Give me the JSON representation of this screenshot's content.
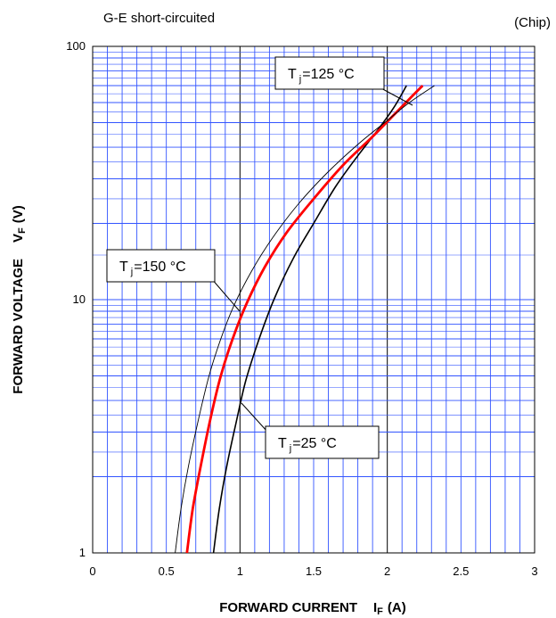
{
  "chart_data": {
    "type": "line",
    "title": "G-E short-circuited",
    "subtitle": "(Chip)",
    "xlabel": "FORWARD CURRENT",
    "xlabel_symbol": "I",
    "xlabel_sub": "F",
    "xlabel_unit": "(A)",
    "ylabel": "FORWARD VOLTAGE",
    "ylabel_symbol": "V",
    "ylabel_sub": "F",
    "ylabel_unit": "(V)",
    "xlim": [
      0,
      3
    ],
    "ylim": [
      1,
      100
    ],
    "yscale": "log",
    "grid": true,
    "x_ticks": [
      "0",
      "0.5",
      "1",
      "1.5",
      "2",
      "2.5",
      "3"
    ],
    "y_ticks": [
      "1",
      "10",
      "100"
    ],
    "series": [
      {
        "name": "Tj=25 °C",
        "label_prefix": "T",
        "label_sub": "j",
        "label_suffix": "=25 °C",
        "color": "#000000",
        "points": [
          [
            0.82,
            1.0
          ],
          [
            0.86,
            1.5
          ],
          [
            0.91,
            2.2
          ],
          [
            0.97,
            3.2
          ],
          [
            1.04,
            4.8
          ],
          [
            1.13,
            7.0
          ],
          [
            1.23,
            10.0
          ],
          [
            1.36,
            14.5
          ],
          [
            1.5,
            20.0
          ],
          [
            1.65,
            28.0
          ],
          [
            1.8,
            37.0
          ],
          [
            1.95,
            48.0
          ],
          [
            2.05,
            58.0
          ],
          [
            2.13,
            70.0
          ]
        ]
      },
      {
        "name": "Tj=125 °C",
        "label_prefix": "T",
        "label_sub": "j",
        "label_suffix": "=125 °C",
        "color": "#ff0000",
        "points": [
          [
            0.64,
            1.0
          ],
          [
            0.68,
            1.5
          ],
          [
            0.74,
            2.3
          ],
          [
            0.8,
            3.4
          ],
          [
            0.87,
            5.0
          ],
          [
            0.95,
            7.0
          ],
          [
            1.05,
            9.8
          ],
          [
            1.17,
            13.5
          ],
          [
            1.32,
            18.5
          ],
          [
            1.5,
            25.0
          ],
          [
            1.7,
            34.0
          ],
          [
            1.9,
            44.0
          ],
          [
            2.05,
            54.0
          ],
          [
            2.15,
            62.0
          ],
          [
            2.24,
            70.0
          ]
        ]
      },
      {
        "name": "Tj=150 °C",
        "label_prefix": "T",
        "label_sub": "j",
        "label_suffix": "=150 °C",
        "color": "#000000",
        "points": [
          [
            0.56,
            1.0
          ],
          [
            0.6,
            1.5
          ],
          [
            0.65,
            2.2
          ],
          [
            0.72,
            3.4
          ],
          [
            0.79,
            5.0
          ],
          [
            0.87,
            7.0
          ],
          [
            0.96,
            9.5
          ],
          [
            1.08,
            13.0
          ],
          [
            1.22,
            17.5
          ],
          [
            1.4,
            24.0
          ],
          [
            1.6,
            32.0
          ],
          [
            1.8,
            41.0
          ],
          [
            2.0,
            51.0
          ],
          [
            2.15,
            60.0
          ],
          [
            2.32,
            70.0
          ]
        ]
      }
    ]
  }
}
